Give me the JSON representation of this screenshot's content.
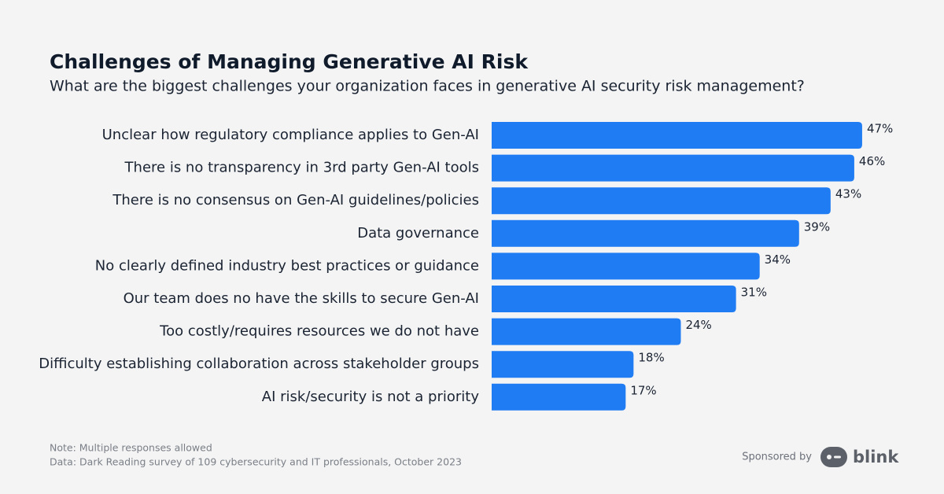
{
  "chart_data": {
    "type": "bar",
    "orientation": "horizontal",
    "title": "Challenges of Managing Generative AI Risk",
    "subtitle": "What are the biggest challenges your organization faces in generative AI security risk management?",
    "categories": [
      "Unclear how regulatory compliance applies to Gen-AI",
      "There is no transparency in 3rd party Gen-AI tools",
      "There is no consensus on Gen-AI guidelines/policies",
      "Data governance",
      "No clearly defined industry best practices or guidance",
      "Our team does no have the skills to secure Gen-AI",
      "Too costly/requires resources we do not have",
      "Difficulty establishing collaboration across stakeholder groups",
      "AI risk/security is not a priority"
    ],
    "values": [
      47,
      46,
      43,
      39,
      34,
      31,
      24,
      18,
      17
    ],
    "value_labels": [
      "47%",
      "46%",
      "43%",
      "39%",
      "34%",
      "31%",
      "24%",
      "18%",
      "17%"
    ],
    "color": "#1f7cf2",
    "notes": [
      "Note: Multiple responses allowed",
      "Data: Dark Reading survey of 109 cybersecurity and IT professionals, October 2023"
    ],
    "sponsor": {
      "label": "Sponsored by",
      "name": "blink"
    }
  }
}
